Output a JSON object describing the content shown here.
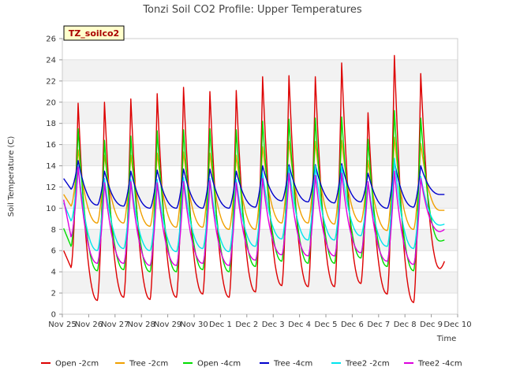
{
  "chart_data": {
    "type": "line",
    "title": "Tonzi Soil CO2 Profile: Upper Temperatures",
    "xlabel": "Time",
    "ylabel": "Soil Temperature (C)",
    "annotation": "TZ_soilco2",
    "ylim": [
      0,
      26
    ],
    "xlim": [
      0,
      15
    ],
    "y_ticks": [
      0,
      2,
      4,
      6,
      8,
      10,
      12,
      14,
      16,
      18,
      20,
      22,
      24,
      26
    ],
    "x_ticks": [
      {
        "pos": 0,
        "label": "Nov 25"
      },
      {
        "pos": 1,
        "label": "Nov 26"
      },
      {
        "pos": 2,
        "label": "Nov 27"
      },
      {
        "pos": 3,
        "label": "Nov 28"
      },
      {
        "pos": 4,
        "label": "Nov 29"
      },
      {
        "pos": 5,
        "label": "Nov 30"
      },
      {
        "pos": 6,
        "label": "Dec 1"
      },
      {
        "pos": 7,
        "label": "Dec 2"
      },
      {
        "pos": 8,
        "label": "Dec 3"
      },
      {
        "pos": 9,
        "label": "Dec 4"
      },
      {
        "pos": 10,
        "label": "Dec 5"
      },
      {
        "pos": 11,
        "label": "Dec 6"
      },
      {
        "pos": 12,
        "label": "Dec 7"
      },
      {
        "pos": 13,
        "label": "Dec 8"
      },
      {
        "pos": 14,
        "label": "Dec 9"
      },
      {
        "pos": 15,
        "label": "Dec 10"
      }
    ],
    "x_days_offset_note": "",
    "legend_position": "bottom",
    "grid": "horizontal-bands",
    "day_starts": [
      0,
      1,
      2,
      3,
      4,
      5,
      6,
      7,
      8,
      9,
      10,
      11,
      12,
      13,
      14
    ],
    "series": [
      {
        "name": "Open -2cm",
        "color": "#dd0000",
        "peaks": [
          19.9,
          20.0,
          20.3,
          20.8,
          21.4,
          21.0,
          21.1,
          22.4,
          22.5,
          22.4,
          23.7,
          19.0,
          24.4,
          22.7
        ],
        "mins": [
          4.4,
          1.3,
          1.6,
          1.4,
          1.6,
          1.9,
          1.6,
          2.1,
          2.7,
          2.6,
          2.6,
          2.9,
          1.9,
          1.1,
          4.3
        ],
        "start": 6.0,
        "end": 5.0
      },
      {
        "name": "Tree -2cm",
        "color": "#f0a000",
        "peaks": [
          15.5,
          15.0,
          15.0,
          15.2,
          15.3,
          15.2,
          15.0,
          15.8,
          16.3,
          16.3,
          16.4,
          14.5,
          16.7,
          16.1
        ],
        "mins": [
          10.2,
          8.6,
          8.6,
          8.3,
          8.2,
          8.2,
          8.0,
          8.0,
          8.6,
          8.6,
          8.5,
          8.7,
          7.9,
          8.0,
          9.8
        ],
        "start": 11.3,
        "end": 9.8
      },
      {
        "name": "Open -4cm",
        "color": "#00dd00",
        "peaks": [
          17.5,
          16.4,
          16.8,
          17.3,
          17.4,
          17.5,
          17.4,
          18.2,
          18.4,
          18.5,
          18.6,
          16.5,
          19.2,
          18.5
        ],
        "mins": [
          6.4,
          4.1,
          4.2,
          4.0,
          4.0,
          4.2,
          4.0,
          4.5,
          5.0,
          4.8,
          4.8,
          5.3,
          4.5,
          4.1,
          6.9
        ],
        "start": 8.1,
        "end": 7.0
      },
      {
        "name": "Tree -4cm",
        "color": "#0000cc",
        "peaks": [
          14.5,
          13.5,
          13.5,
          13.6,
          13.7,
          13.7,
          13.5,
          14.0,
          14.1,
          14.1,
          14.2,
          13.3,
          14.4,
          14.0
        ],
        "mins": [
          11.8,
          10.3,
          10.2,
          10.0,
          10.0,
          10.0,
          10.0,
          10.1,
          10.7,
          10.6,
          10.5,
          10.6,
          10.0,
          10.1,
          11.3
        ],
        "start": 12.8,
        "end": 11.3
      },
      {
        "name": "Tree2 -2cm",
        "color": "#00e5ee",
        "peaks": [
          14.0,
          12.8,
          12.7,
          12.7,
          12.9,
          12.8,
          12.7,
          13.3,
          13.9,
          14.0,
          14.0,
          12.5,
          14.7,
          13.0
        ],
        "mins": [
          8.8,
          6.0,
          6.2,
          6.0,
          5.9,
          6.2,
          5.9,
          6.4,
          7.1,
          7.0,
          7.0,
          7.4,
          6.4,
          6.2,
          8.4
        ],
        "start": 10.5,
        "end": 8.5
      },
      {
        "name": "Tree2 -4cm",
        "color": "#dd00dd",
        "peaks": [
          13.9,
          12.4,
          12.5,
          12.4,
          12.5,
          12.6,
          12.4,
          12.8,
          13.3,
          13.1,
          13.3,
          12.5,
          13.5,
          12.8
        ],
        "mins": [
          7.3,
          4.8,
          4.8,
          4.6,
          4.6,
          4.8,
          4.6,
          5.1,
          5.6,
          5.5,
          5.5,
          5.8,
          5.0,
          4.7,
          7.8
        ],
        "start": 10.8,
        "end": 8.0
      }
    ]
  }
}
